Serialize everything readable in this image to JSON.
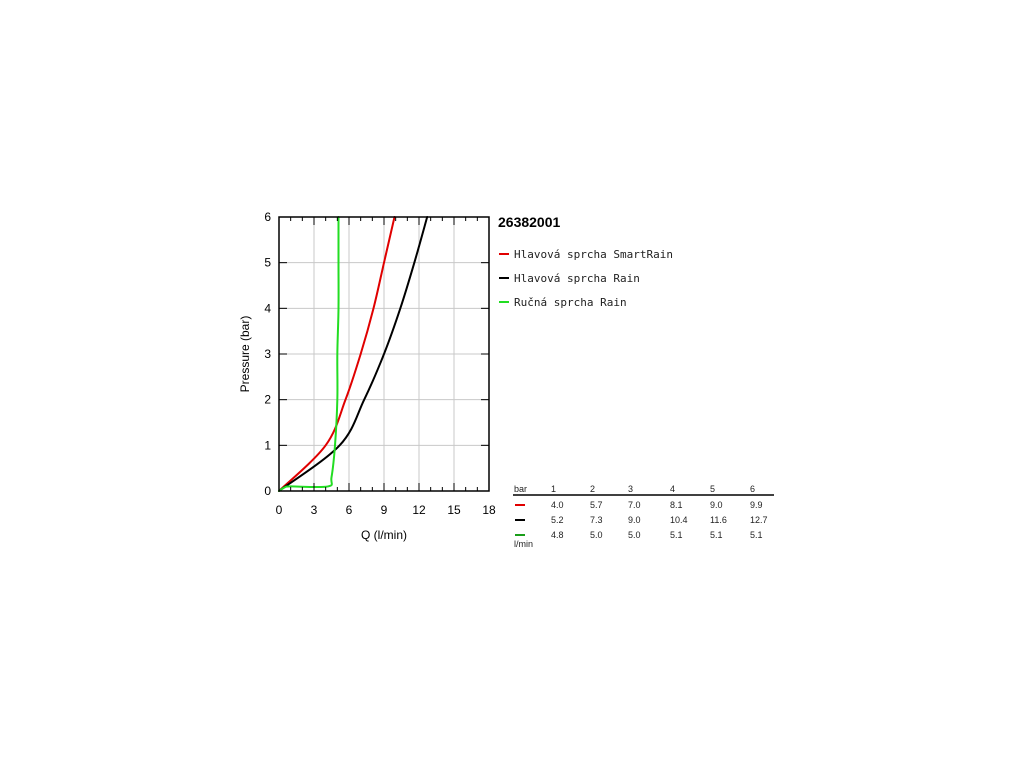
{
  "chart_data": {
    "type": "line",
    "title": "26382001",
    "xlabel": "Q (l/min)",
    "ylabel": "Pressure (bar)",
    "xlim": [
      0,
      18
    ],
    "ylim": [
      0,
      6
    ],
    "xticks": [
      "0",
      "3",
      "6",
      "9",
      "12",
      "15",
      "18"
    ],
    "yticks": [
      "0",
      "1",
      "2",
      "3",
      "4",
      "5",
      "6"
    ],
    "grid": true,
    "legend_position": "right",
    "series": [
      {
        "name": "Hlavová sprcha SmartRain",
        "color": "#e00000",
        "points": [
          [
            0,
            0
          ],
          [
            4.0,
            1
          ],
          [
            5.7,
            2
          ],
          [
            7.0,
            3
          ],
          [
            8.1,
            4
          ],
          [
            9.0,
            5
          ],
          [
            9.9,
            6
          ]
        ]
      },
      {
        "name": "Hlavová sprcha Rain",
        "color": "#000000",
        "points": [
          [
            0,
            0
          ],
          [
            5.2,
            1
          ],
          [
            7.3,
            2
          ],
          [
            9.0,
            3
          ],
          [
            10.4,
            4
          ],
          [
            11.6,
            5
          ],
          [
            12.7,
            6
          ]
        ]
      },
      {
        "name": "Ručná sprcha Rain",
        "color": "#22dd22",
        "points": [
          [
            0,
            0
          ],
          [
            0.5,
            0.08
          ],
          [
            1,
            0.1
          ],
          [
            4.2,
            0.1
          ],
          [
            4.5,
            0.3
          ],
          [
            4.8,
            1
          ],
          [
            5.0,
            2
          ],
          [
            5.0,
            3
          ],
          [
            5.1,
            4
          ],
          [
            5.1,
            5
          ],
          [
            5.1,
            6
          ]
        ]
      }
    ],
    "table": {
      "header_label": "bar",
      "unit_label": "l/min",
      "columns": [
        "1",
        "2",
        "3",
        "4",
        "5",
        "6"
      ],
      "rows": [
        {
          "color": "#e00000",
          "values": [
            "4.0",
            "5.7",
            "7.0",
            "8.1",
            "9.0",
            "9.9"
          ]
        },
        {
          "color": "#000000",
          "values": [
            "5.2",
            "7.3",
            "9.0",
            "10.4",
            "11.6",
            "12.7"
          ]
        },
        {
          "color": "#1a9e1a",
          "values": [
            "4.8",
            "5.0",
            "5.0",
            "5.1",
            "5.1",
            "5.1"
          ]
        }
      ]
    }
  }
}
